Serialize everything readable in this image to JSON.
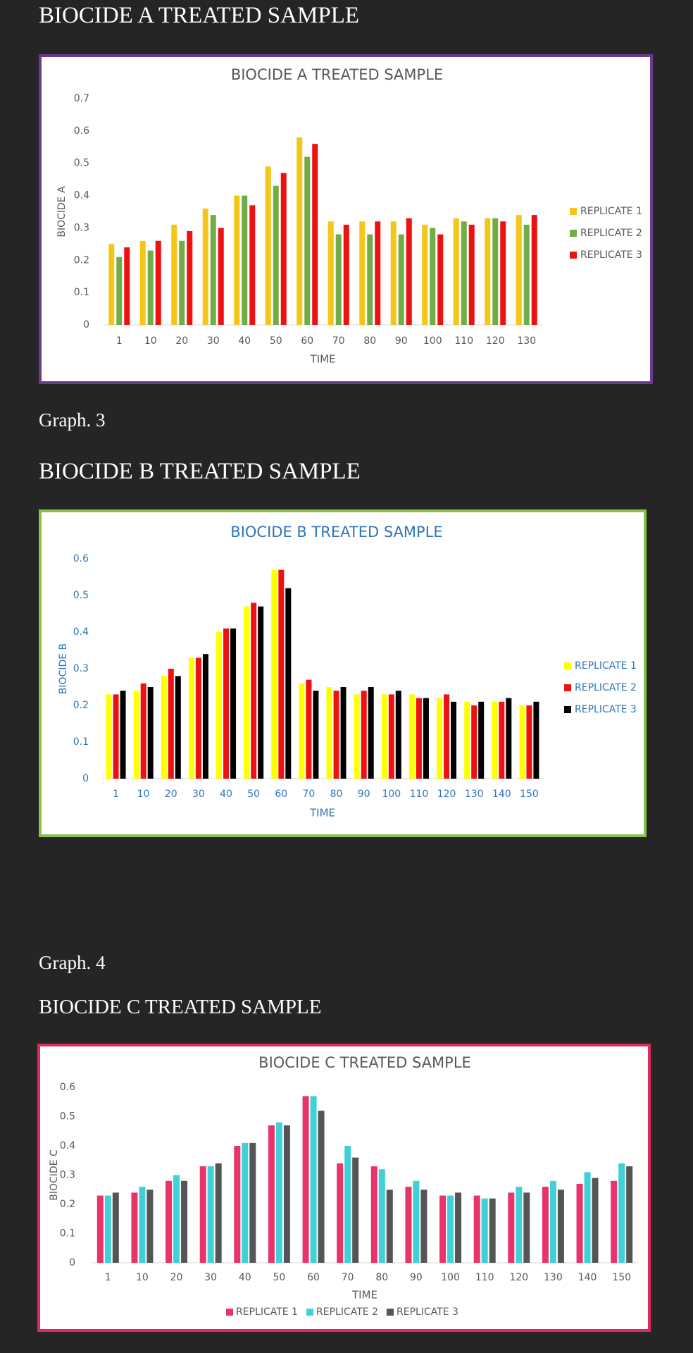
{
  "headings": {
    "biocide_a": "BIOCIDE A TREATED SAMPLE",
    "graph3": "Graph. 3",
    "biocide_b": "BIOCIDE B TREATED SAMPLE",
    "graph4": "Graph. 4",
    "biocide_c": "BIOCIDE C TREATED SAMPLE"
  },
  "chart_data": [
    {
      "type": "bar",
      "title": "BIOCIDE A TREATED SAMPLE",
      "xlabel": "TIME",
      "ylabel": "BIOCIDE A",
      "ylim": [
        0,
        0.7
      ],
      "yticks": [
        "0",
        "0.1",
        "0.2",
        "0.3",
        "0.4",
        "0.5",
        "0.6",
        "0.7"
      ],
      "legend_position": "right",
      "text_color": "#595959",
      "border_color": "#6b3b8f",
      "categories": [
        "1",
        "10",
        "20",
        "30",
        "40",
        "50",
        "60",
        "70",
        "80",
        "90",
        "100",
        "110",
        "120",
        "130"
      ],
      "series": [
        {
          "name": "REPLICATE 1",
          "color": "#f5c518",
          "values": [
            0.25,
            0.26,
            0.31,
            0.36,
            0.4,
            0.49,
            0.58,
            0.32,
            0.32,
            0.32,
            0.31,
            0.33,
            0.33,
            0.34
          ]
        },
        {
          "name": "REPLICATE 2",
          "color": "#70ad47",
          "values": [
            0.21,
            0.23,
            0.26,
            0.34,
            0.4,
            0.43,
            0.52,
            0.28,
            0.28,
            0.28,
            0.3,
            0.32,
            0.33,
            0.31
          ]
        },
        {
          "name": "REPLICATE 3",
          "color": "#ee1111",
          "values": [
            0.24,
            0.26,
            0.29,
            0.3,
            0.37,
            0.47,
            0.56,
            0.31,
            0.32,
            0.33,
            0.28,
            0.31,
            0.32,
            0.34
          ]
        }
      ]
    },
    {
      "type": "bar",
      "title": "BIOCIDE B TREATED SAMPLE",
      "xlabel": "TIME",
      "ylabel": "BIOCIDE B",
      "ylim": [
        0,
        0.6
      ],
      "yticks": [
        "0",
        "0.1",
        "0.2",
        "0.3",
        "0.4",
        "0.5",
        "0.6"
      ],
      "legend_position": "right",
      "text_color": "#2e75b6",
      "border_color": "#8bc34a",
      "categories": [
        "1",
        "10",
        "20",
        "30",
        "40",
        "50",
        "60",
        "70",
        "80",
        "90",
        "100",
        "110",
        "120",
        "130",
        "140",
        "150"
      ],
      "series": [
        {
          "name": "REPLICATE 1",
          "color": "#ffff00",
          "values": [
            0.23,
            0.24,
            0.28,
            0.33,
            0.4,
            0.47,
            0.57,
            0.26,
            0.25,
            0.23,
            0.23,
            0.23,
            0.22,
            0.21,
            0.21,
            0.2
          ]
        },
        {
          "name": "REPLICATE 2",
          "color": "#ee1111",
          "values": [
            0.23,
            0.26,
            0.3,
            0.33,
            0.41,
            0.48,
            0.57,
            0.27,
            0.24,
            0.24,
            0.23,
            0.22,
            0.23,
            0.2,
            0.21,
            0.2
          ]
        },
        {
          "name": "REPLICATE 3",
          "color": "#000000",
          "values": [
            0.24,
            0.25,
            0.28,
            0.34,
            0.41,
            0.47,
            0.52,
            0.24,
            0.25,
            0.25,
            0.24,
            0.22,
            0.21,
            0.21,
            0.22,
            0.21
          ]
        }
      ]
    },
    {
      "type": "bar",
      "title": "BIOCIDE C TREATED SAMPLE",
      "xlabel": "TIME",
      "ylabel": "BIOCIDE C",
      "ylim": [
        0,
        0.6
      ],
      "yticks": [
        "0",
        "0.1",
        "0.2",
        "0.3",
        "0.4",
        "0.5",
        "0.6"
      ],
      "legend_position": "bottom",
      "text_color": "#595959",
      "border_color": "#e0285a",
      "categories": [
        "1",
        "10",
        "20",
        "30",
        "40",
        "50",
        "60",
        "70",
        "80",
        "90",
        "100",
        "110",
        "120",
        "130",
        "140",
        "150"
      ],
      "series": [
        {
          "name": "REPLICATE 1",
          "color": "#e8336b",
          "values": [
            0.23,
            0.24,
            0.28,
            0.33,
            0.4,
            0.47,
            0.57,
            0.34,
            0.33,
            0.26,
            0.23,
            0.23,
            0.24,
            0.26,
            0.27,
            0.28
          ]
        },
        {
          "name": "REPLICATE 2",
          "color": "#40d0d8",
          "values": [
            0.23,
            0.26,
            0.3,
            0.33,
            0.41,
            0.48,
            0.57,
            0.4,
            0.32,
            0.28,
            0.23,
            0.22,
            0.26,
            0.28,
            0.31,
            0.34
          ]
        },
        {
          "name": "REPLICATE 3",
          "color": "#555555",
          "values": [
            0.24,
            0.25,
            0.28,
            0.34,
            0.41,
            0.47,
            0.52,
            0.36,
            0.25,
            0.25,
            0.24,
            0.22,
            0.24,
            0.25,
            0.29,
            0.33
          ]
        }
      ]
    }
  ]
}
